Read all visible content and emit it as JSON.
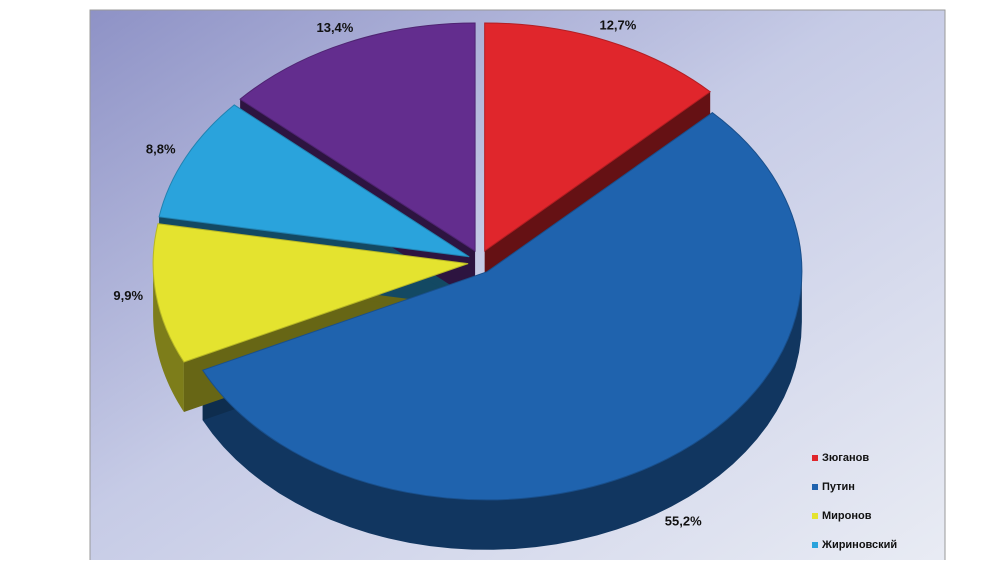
{
  "chart_data": {
    "type": "pie",
    "categories": [
      "Зюганов",
      "Путин",
      "Миронов",
      "Жириновский",
      null
    ],
    "values": [
      12.7,
      55.2,
      9.9,
      8.8,
      13.4
    ],
    "value_labels": [
      "12,7%",
      "55,2%",
      "9,9%",
      "8,8%",
      "13,4%"
    ],
    "colors": [
      "#e0262c",
      "#1f63ae",
      "#e4e32f",
      "#2aa3dc",
      "#632d8e"
    ],
    "legend": "bottom-right"
  }
}
